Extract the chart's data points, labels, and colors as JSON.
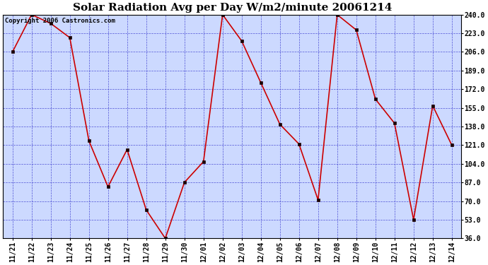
{
  "title": "Solar Radiation Avg per Day W/m2/minute 20061214",
  "copyright_text": "Copyright 2006 Castronics.com",
  "x_labels": [
    "11/21",
    "11/22",
    "11/23",
    "11/24",
    "11/25",
    "11/26",
    "11/27",
    "11/28",
    "11/29",
    "11/30",
    "12/01",
    "12/02",
    "12/03",
    "12/04",
    "12/05",
    "12/06",
    "12/07",
    "12/08",
    "12/09",
    "12/10",
    "12/11",
    "12/12",
    "12/13",
    "12/14"
  ],
  "y_values": [
    206,
    240,
    232,
    219,
    125,
    83,
    117,
    62,
    36,
    87,
    106,
    240,
    216,
    178,
    140,
    122,
    71,
    240,
    226,
    163,
    141,
    53,
    157,
    121
  ],
  "ylim_min": 36.0,
  "ylim_max": 240.0,
  "y_ticks": [
    36.0,
    53.0,
    70.0,
    87.0,
    104.0,
    121.0,
    138.0,
    155.0,
    172.0,
    189.0,
    206.0,
    223.0,
    240.0
  ],
  "line_color": "#cc0000",
  "marker_color": "#1a0000",
  "bg_color": "#ccd9ff",
  "outer_bg": "#ffffff",
  "grid_color": "#3333cc",
  "title_fontsize": 11,
  "tick_fontsize": 7,
  "copyright_fontsize": 6.5,
  "figwidth": 6.9,
  "figheight": 3.75,
  "dpi": 100
}
